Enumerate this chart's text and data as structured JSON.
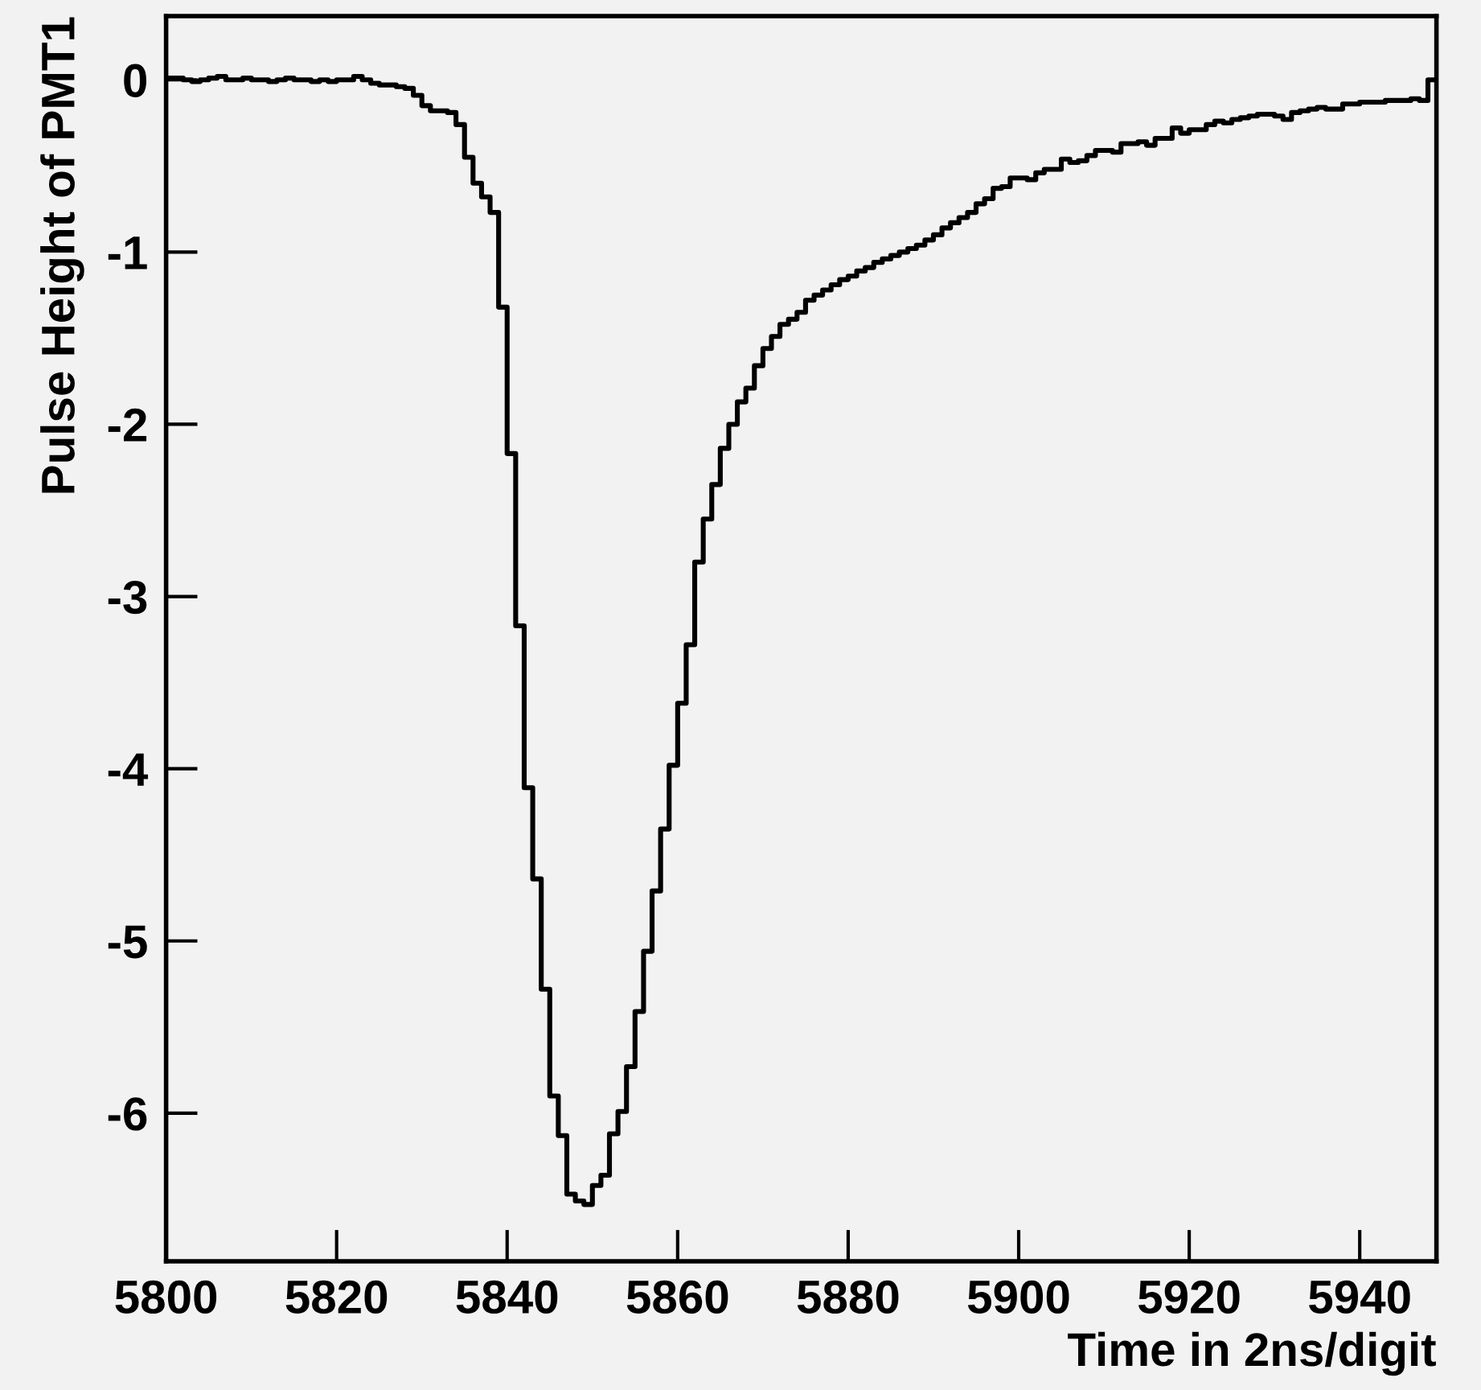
{
  "chart_data": {
    "type": "histogram",
    "xlabel": "Time in 2ns/digit",
    "ylabel": "Pulse Height of PMT1",
    "color": "#000000",
    "bins": [
      5800,
      5801,
      5802,
      5803,
      5804,
      5805,
      5806,
      5807,
      5808,
      5809,
      5810,
      5811,
      5812,
      5813,
      5814,
      5815,
      5816,
      5817,
      5818,
      5819,
      5820,
      5821,
      5822,
      5823,
      5824,
      5825,
      5826,
      5827,
      5828,
      5829,
      5830,
      5831,
      5832,
      5833,
      5834,
      5835,
      5836,
      5837,
      5838,
      5839,
      5840,
      5841,
      5842,
      5843,
      5844,
      5845,
      5846,
      5847,
      5848,
      5849,
      5850,
      5851,
      5852,
      5853,
      5854,
      5855,
      5856,
      5857,
      5858,
      5859,
      5860,
      5861,
      5862,
      5863,
      5864,
      5865,
      5866,
      5867,
      5868,
      5869,
      5870,
      5871,
      5872,
      5873,
      5874,
      5875,
      5876,
      5877,
      5878,
      5879,
      5880,
      5881,
      5882,
      5883,
      5884,
      5885,
      5886,
      5887,
      5888,
      5889,
      5890,
      5891,
      5892,
      5893,
      5894,
      5895,
      5896,
      5897,
      5898,
      5899,
      5900,
      5901,
      5902,
      5903,
      5904,
      5905,
      5906,
      5907,
      5908,
      5909,
      5910,
      5911,
      5912,
      5913,
      5914,
      5915,
      5916,
      5917,
      5918,
      5919,
      5920,
      5921,
      5922,
      5923,
      5924,
      5925,
      5926,
      5927,
      5928,
      5929,
      5930,
      5931,
      5932,
      5933,
      5934,
      5935,
      5936,
      5937,
      5938,
      5939,
      5940,
      5941,
      5942,
      5943,
      5944,
      5945,
      5946,
      5947,
      5948,
      5949
    ],
    "values": [
      0.01,
      0.01,
      0.0,
      -0.01,
      0.0,
      0.01,
      0.02,
      0.0,
      0.0,
      0.01,
      0.0,
      0.0,
      -0.01,
      0.0,
      0.01,
      0.0,
      0.0,
      -0.01,
      0.0,
      -0.01,
      0.0,
      0.0,
      0.02,
      0.0,
      -0.02,
      -0.03,
      -0.03,
      -0.04,
      -0.05,
      -0.09,
      -0.15,
      -0.18,
      -0.18,
      -0.19,
      -0.26,
      -0.45,
      -0.6,
      -0.68,
      -0.77,
      -1.32,
      -2.17,
      -3.17,
      -4.11,
      -4.64,
      -5.28,
      -5.9,
      -6.13,
      -6.47,
      -6.51,
      -6.53,
      -6.42,
      -6.36,
      -6.12,
      -5.99,
      -5.73,
      -5.41,
      -5.06,
      -4.71,
      -4.35,
      -3.98,
      -3.62,
      -3.28,
      -2.8,
      -2.55,
      -2.35,
      -2.14,
      -2.0,
      -1.87,
      -1.79,
      -1.66,
      -1.56,
      -1.49,
      -1.42,
      -1.39,
      -1.35,
      -1.28,
      -1.25,
      -1.22,
      -1.19,
      -1.16,
      -1.14,
      -1.11,
      -1.09,
      -1.06,
      -1.04,
      -1.02,
      -1.0,
      -0.98,
      -0.96,
      -0.93,
      -0.9,
      -0.86,
      -0.83,
      -0.8,
      -0.77,
      -0.72,
      -0.69,
      -0.63,
      -0.62,
      -0.57,
      -0.57,
      -0.58,
      -0.54,
      -0.52,
      -0.52,
      -0.46,
      -0.48,
      -0.47,
      -0.44,
      -0.41,
      -0.41,
      -0.42,
      -0.37,
      -0.37,
      -0.36,
      -0.38,
      -0.34,
      -0.34,
      -0.28,
      -0.31,
      -0.29,
      -0.29,
      -0.26,
      -0.24,
      -0.25,
      -0.23,
      -0.22,
      -0.21,
      -0.2,
      -0.2,
      -0.21,
      -0.23,
      -0.19,
      -0.18,
      -0.17,
      -0.16,
      -0.17,
      -0.17,
      -0.14,
      -0.14,
      -0.13,
      -0.13,
      -0.13,
      -0.12,
      -0.12,
      -0.12,
      -0.11,
      -0.12,
      0.0
    ],
    "xlim": [
      5800,
      5949
    ],
    "ylim": [
      -6.86,
      0.37
    ],
    "xticks": [
      5800,
      5820,
      5840,
      5860,
      5880,
      5900,
      5920,
      5940
    ],
    "yticks": [
      0,
      -1,
      -2,
      -3,
      -4,
      -5,
      -6
    ],
    "grid": false,
    "legend": false
  }
}
